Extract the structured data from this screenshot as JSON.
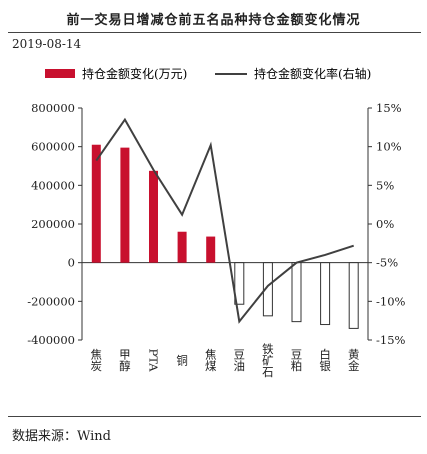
{
  "title": "前一交易日增减仓前五名品种持仓金额变化情况",
  "date": "2019-08-14",
  "source": "数据来源：Wind",
  "chart_data": {
    "type": "bar+line",
    "categories": [
      "焦炭",
      "甲醇",
      "PTA",
      "铜",
      "焦煤",
      "豆油",
      "铁矿石",
      "豆粕",
      "白银",
      "黄金"
    ],
    "series": [
      {
        "name": "持仓金额变化(万元)",
        "type": "bar",
        "axis": "left",
        "color": "#c8102e",
        "values": [
          610000,
          595000,
          475000,
          160000,
          135000,
          -215000,
          -275000,
          -305000,
          -320000,
          -340000
        ]
      },
      {
        "name": "持仓金额变化率(右轴)",
        "type": "line",
        "axis": "right",
        "color": "#404040",
        "values": [
          8.2,
          13.5,
          7.0,
          1.2,
          10.2,
          -12.6,
          -8.0,
          -5.0,
          -4.0,
          -2.8
        ]
      }
    ],
    "left_axis": {
      "ylim": [
        -400000,
        800000
      ],
      "ticks": [
        "-400000",
        "-200000",
        "0",
        "200000",
        "400000",
        "600000",
        "800000"
      ]
    },
    "right_axis": {
      "ylim": [
        -15,
        15
      ],
      "ticks": [
        "-15%",
        "-10%",
        "-5%",
        "0%",
        "5%",
        "10%",
        "15%"
      ]
    },
    "legend_position": "top",
    "grid": false
  }
}
